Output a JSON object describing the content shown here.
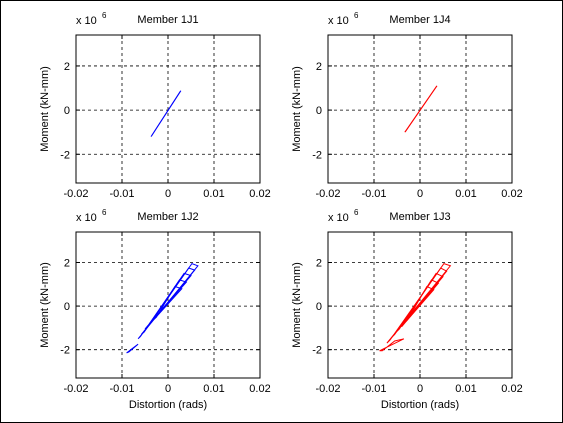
{
  "figure": {
    "background": "#ffffff",
    "border_color": "#000000"
  },
  "chart_data": [
    {
      "type": "line",
      "title": "Member 1J1",
      "xlabel": "",
      "ylabel": "Moment (kN-mm)",
      "xlim": [
        -0.02,
        0.02
      ],
      "ylim": [
        -3.3,
        3.4
      ],
      "y_multiplier": "x 10",
      "y_multiplier_exponent": "6",
      "xticks": [
        -0.02,
        -0.01,
        0,
        0.01,
        0.02
      ],
      "xtick_labels": [
        "-0.02",
        "-0.01",
        "0",
        "0.01",
        "0.02"
      ],
      "yticks": [
        -2,
        0,
        2
      ],
      "ytick_labels": [
        "-2",
        "0",
        "2"
      ],
      "grid": true,
      "grid_style": "dashed",
      "series": [
        {
          "color": "#0000ff",
          "loops": [
            {
              "x": [
                -0.0037,
                0.0028,
                -0.0036,
                0.0027,
                -0.0037
              ],
              "y": [
                -1.2,
                0.88,
                -1.18,
                0.86,
                -1.2
              ]
            }
          ]
        }
      ]
    },
    {
      "type": "line",
      "title": "Member 1J4",
      "xlabel": "",
      "ylabel": "Moment (kN-mm)",
      "xlim": [
        -0.02,
        0.02
      ],
      "ylim": [
        -3.3,
        3.4
      ],
      "y_multiplier": "x 10",
      "y_multiplier_exponent": "6",
      "xticks": [
        -0.02,
        -0.01,
        0,
        0.01,
        0.02
      ],
      "xtick_labels": [
        "-0.02",
        "-0.01",
        "0",
        "0.01",
        "0.02"
      ],
      "yticks": [
        -2,
        0,
        2
      ],
      "ytick_labels": [
        "-2",
        "0",
        "2"
      ],
      "grid": true,
      "grid_style": "dashed",
      "series": [
        {
          "color": "#ff0000",
          "loops": [
            {
              "x": [
                -0.0033,
                0.0037,
                -0.0032,
                0.0036,
                -0.0033
              ],
              "y": [
                -1.0,
                1.1,
                -0.98,
                1.08,
                -1.0
              ]
            }
          ]
        }
      ]
    },
    {
      "type": "line",
      "title": "Member 1J2",
      "xlabel": "Distortion (rads)",
      "ylabel": "Moment (kN-mm)",
      "xlim": [
        -0.02,
        0.02
      ],
      "ylim": [
        -3.3,
        3.4
      ],
      "y_multiplier": "x 10",
      "y_multiplier_exponent": "6",
      "xticks": [
        -0.02,
        -0.01,
        0,
        0.01,
        0.02
      ],
      "xtick_labels": [
        "-0.02",
        "-0.01",
        "0",
        "0.01",
        "0.02"
      ],
      "yticks": [
        -2,
        0,
        2
      ],
      "ytick_labels": [
        "-2",
        "0",
        "2"
      ],
      "grid": true,
      "grid_style": "dashed",
      "series": [
        {
          "color": "#0000ff",
          "loops": [
            {
              "x": [
                -0.003,
                0.003,
                0.0015,
                -0.0025,
                -0.003
              ],
              "y": [
                -0.6,
                0.8,
                0.9,
                -0.5,
                -0.6
              ]
            },
            {
              "x": [
                -0.004,
                0.004,
                0.0025,
                -0.0035,
                -0.004
              ],
              "y": [
                -0.8,
                1.1,
                1.2,
                -0.7,
                -0.8
              ]
            },
            {
              "x": [
                -0.005,
                0.005,
                0.0035,
                -0.0045,
                -0.005
              ],
              "y": [
                -1.05,
                1.4,
                1.5,
                -0.95,
                -1.05
              ]
            },
            {
              "x": [
                -0.0058,
                0.0058,
                0.0045,
                -0.0052,
                -0.0058
              ],
              "y": [
                -1.3,
                1.65,
                1.75,
                -1.2,
                -1.3
              ]
            },
            {
              "x": [
                -0.0065,
                0.0065,
                0.0052,
                -0.006,
                -0.0065
              ],
              "y": [
                -1.5,
                1.85,
                1.95,
                -1.4,
                -1.5
              ]
            },
            {
              "x": [
                -0.0078,
                -0.0065,
                -0.0085,
                -0.009,
                -0.0078
              ],
              "y": [
                -1.95,
                -1.75,
                -2.1,
                -2.15,
                -1.95
              ]
            }
          ]
        }
      ]
    },
    {
      "type": "line",
      "title": "Member 1J3",
      "xlabel": "Distortion (rads)",
      "ylabel": "Moment (kN-mm)",
      "xlim": [
        -0.02,
        0.02
      ],
      "ylim": [
        -3.3,
        3.4
      ],
      "y_multiplier": "x 10",
      "y_multiplier_exponent": "6",
      "xticks": [
        -0.02,
        -0.01,
        0,
        0.01,
        0.02
      ],
      "xtick_labels": [
        "-0.02",
        "-0.01",
        "0",
        "0.01",
        "0.02"
      ],
      "yticks": [
        -2,
        0,
        2
      ],
      "ytick_labels": [
        "-2",
        "0",
        "2"
      ],
      "grid": true,
      "grid_style": "dashed",
      "series": [
        {
          "color": "#ff0000",
          "loops": [
            {
              "x": [
                -0.003,
                0.003,
                0.0015,
                -0.0025,
                -0.003
              ],
              "y": [
                -0.7,
                0.75,
                0.9,
                -0.55,
                -0.7
              ]
            },
            {
              "x": [
                -0.004,
                0.004,
                0.0025,
                -0.0035,
                -0.004
              ],
              "y": [
                -0.95,
                1.05,
                1.2,
                -0.8,
                -0.95
              ]
            },
            {
              "x": [
                -0.0052,
                0.005,
                0.0035,
                -0.0045,
                -0.0052
              ],
              "y": [
                -1.2,
                1.35,
                1.5,
                -1.05,
                -1.2
              ]
            },
            {
              "x": [
                -0.0062,
                0.0058,
                0.0045,
                -0.0055,
                -0.0062
              ],
              "y": [
                -1.45,
                1.6,
                1.75,
                -1.3,
                -1.45
              ]
            },
            {
              "x": [
                -0.0072,
                0.0066,
                0.0052,
                -0.0065,
                -0.0072
              ],
              "y": [
                -1.7,
                1.85,
                1.95,
                -1.55,
                -1.7
              ]
            },
            {
              "x": [
                -0.0088,
                -0.0035,
                -0.0055,
                -0.0082,
                -0.0088
              ],
              "y": [
                -2.05,
                -1.5,
                -1.6,
                -2.05,
                -2.05
              ]
            }
          ]
        }
      ]
    }
  ]
}
